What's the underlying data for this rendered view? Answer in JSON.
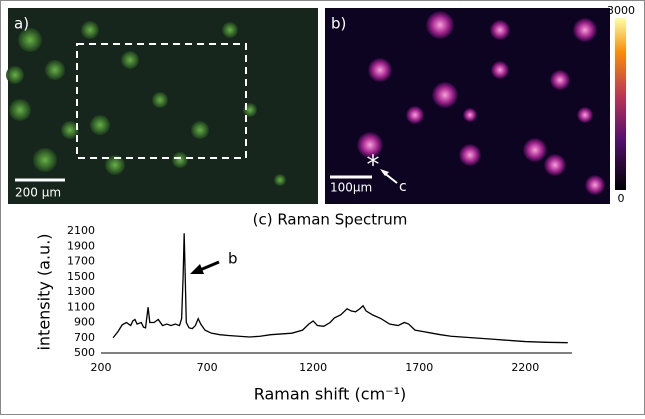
{
  "panels": {
    "a": {
      "label": "a)",
      "scale": "200 μm"
    },
    "b": {
      "label": "b)",
      "scale": "100μm",
      "marker": "c",
      "colorbar_max": "3000",
      "colorbar_min": "0"
    }
  },
  "chart_data": {
    "type": "line",
    "title": "(c) Raman Spectrum",
    "xlabel": "Raman shift (cm⁻¹)",
    "ylabel": "intensity (a.u.)",
    "annotation": "b",
    "color": "#000000",
    "x": [
      257,
      280,
      300,
      320,
      340,
      350,
      360,
      370,
      390,
      400,
      410,
      422,
      430,
      450,
      470,
      490,
      510,
      530,
      550,
      570,
      580,
      587,
      592,
      597,
      602,
      615,
      630,
      645,
      658,
      670,
      690,
      720,
      760,
      800,
      850,
      900,
      950,
      1000,
      1050,
      1100,
      1150,
      1180,
      1200,
      1220,
      1250,
      1280,
      1300,
      1330,
      1360,
      1380,
      1400,
      1420,
      1435,
      1450,
      1480,
      1520,
      1560,
      1600,
      1630,
      1650,
      1680,
      1720,
      1760,
      1800,
      1850,
      1900,
      1950,
      2000,
      2050,
      2100,
      2150,
      2200,
      2300,
      2400
    ],
    "values": [
      700,
      780,
      870,
      900,
      860,
      920,
      940,
      880,
      900,
      840,
      830,
      1100,
      900,
      900,
      940,
      860,
      880,
      860,
      880,
      860,
      950,
      1500,
      2070,
      1500,
      900,
      830,
      820,
      860,
      950,
      880,
      800,
      760,
      740,
      730,
      720,
      710,
      720,
      740,
      750,
      760,
      800,
      880,
      920,
      860,
      850,
      900,
      960,
      1000,
      1080,
      1050,
      1040,
      1080,
      1120,
      1050,
      1000,
      950,
      880,
      860,
      900,
      880,
      800,
      780,
      760,
      740,
      720,
      710,
      700,
      690,
      680,
      670,
      660,
      650,
      640,
      635
    ],
    "xlim": [
      200,
      2420
    ],
    "ylim": [
      500,
      2100
    ],
    "xticks": [
      200,
      700,
      1200,
      1700,
      2200
    ],
    "yticks": [
      500,
      700,
      900,
      1100,
      1300,
      1500,
      1700,
      1900,
      2100
    ]
  }
}
